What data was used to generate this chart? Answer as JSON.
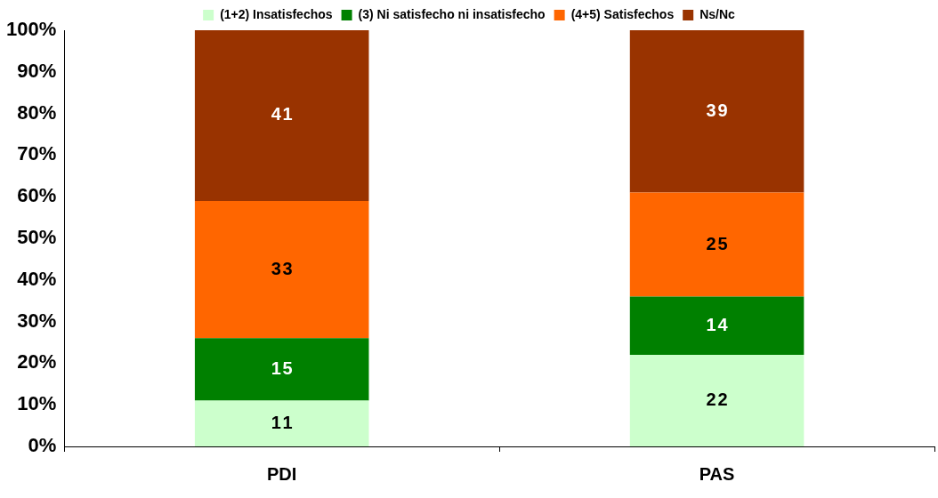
{
  "chart_data": {
    "type": "bar",
    "stacked": true,
    "categories": [
      "PDI",
      "PAS"
    ],
    "series": [
      {
        "name": "(1+2) Insatisfechos",
        "color": "#ccffcc",
        "values": [
          11,
          22
        ]
      },
      {
        "name": "(3) Ni satisfecho ni insatisfecho",
        "color": "#008000",
        "values": [
          15,
          14
        ]
      },
      {
        "name": "(4+5) Satisfechos",
        "color": "#ff6600",
        "values": [
          33,
          25
        ]
      },
      {
        "name": "Ns/Nc",
        "color": "#993300",
        "values": [
          41,
          39
        ]
      }
    ],
    "ylim": [
      0,
      100
    ],
    "yticks": [
      {
        "value": 0,
        "label": "0%"
      },
      {
        "value": 10,
        "label": "10%"
      },
      {
        "value": 20,
        "label": "20%"
      },
      {
        "value": 30,
        "label": "30%"
      },
      {
        "value": 40,
        "label": "40%"
      },
      {
        "value": 50,
        "label": "50%"
      },
      {
        "value": 60,
        "label": "60%"
      },
      {
        "value": 70,
        "label": "70%"
      },
      {
        "value": 80,
        "label": "80%"
      },
      {
        "value": 90,
        "label": "90%"
      },
      {
        "value": 100,
        "label": "100%"
      }
    ],
    "data_labels": true,
    "grid": false,
    "legend": "top"
  }
}
